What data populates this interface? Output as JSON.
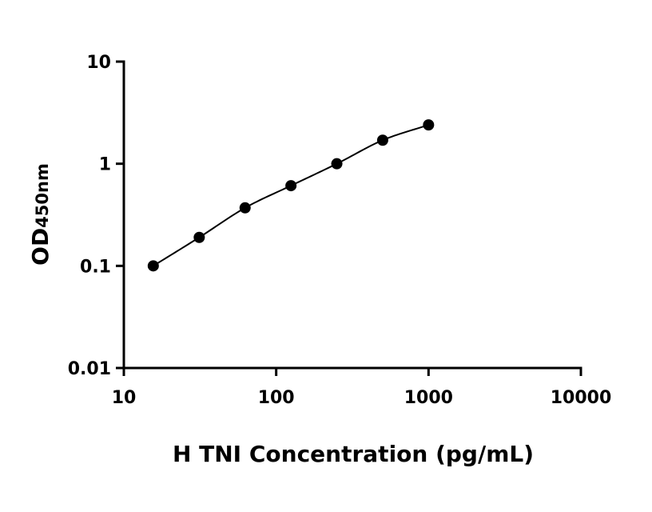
{
  "chart_data": {
    "type": "scatter",
    "title": "",
    "xlabel": "H TNI Concentration (pg/mL)",
    "ylabel": "OD",
    "ylabel_subscript": "450nm",
    "xscale": "log",
    "yscale": "log",
    "xlim": [
      10,
      10000
    ],
    "ylim": [
      0.01,
      10
    ],
    "grid": false,
    "legend": "none",
    "x_ticks": [
      {
        "value": 10,
        "label": "10"
      },
      {
        "value": 100,
        "label": "100"
      },
      {
        "value": 1000,
        "label": "1000"
      },
      {
        "value": 10000,
        "label": "10000"
      }
    ],
    "y_ticks": [
      {
        "value": 0.01,
        "label": "0.01"
      },
      {
        "value": 0.1,
        "label": "0.1"
      },
      {
        "value": 1,
        "label": "1"
      },
      {
        "value": 10,
        "label": "10"
      }
    ],
    "series": [
      {
        "fit_curve": true,
        "marker": "circle",
        "color": "#000000",
        "points": [
          {
            "x": 15.6,
            "y": 0.1
          },
          {
            "x": 31.25,
            "y": 0.19
          },
          {
            "x": 62.5,
            "y": 0.37
          },
          {
            "x": 125,
            "y": 0.61
          },
          {
            "x": 250,
            "y": 1.0
          },
          {
            "x": 500,
            "y": 1.7
          },
          {
            "x": 1000,
            "y": 2.4
          }
        ]
      }
    ]
  }
}
